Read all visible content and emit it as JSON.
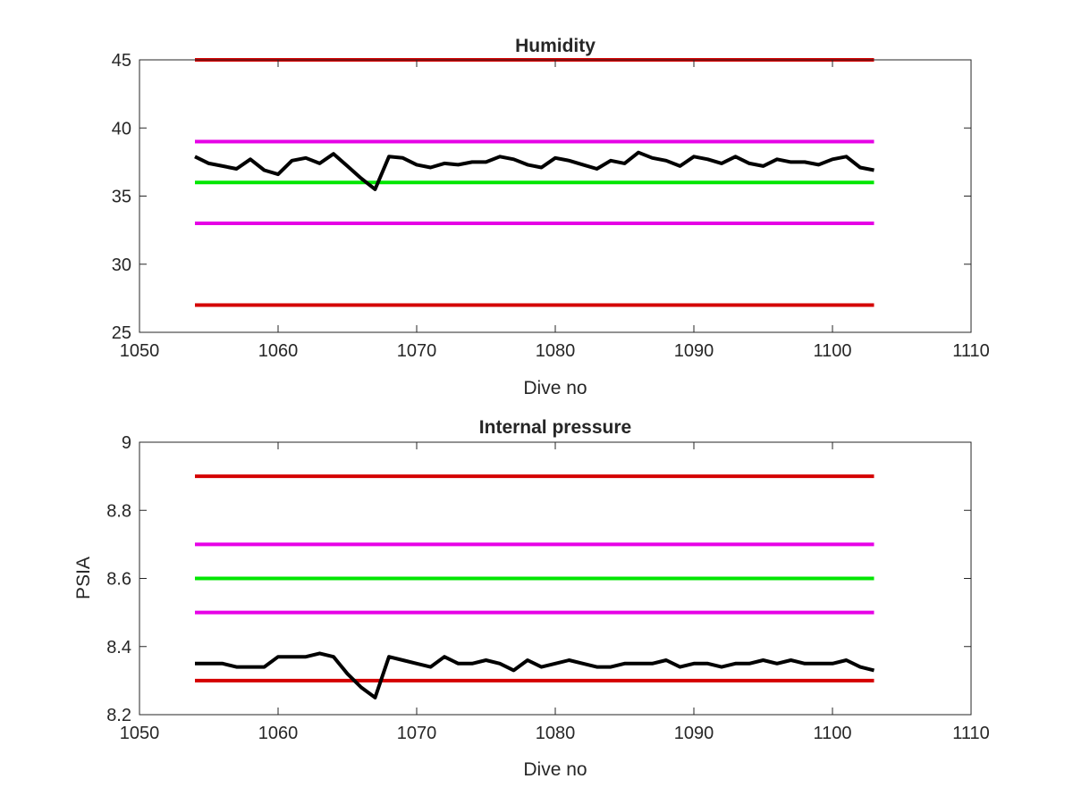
{
  "chart_data": [
    {
      "type": "line",
      "title": "Humidity",
      "xlabel": "Dive no",
      "ylabel": "",
      "xlim": [
        1050,
        1110
      ],
      "ylim": [
        25,
        45
      ],
      "xticks": [
        "1050",
        "1060",
        "1070",
        "1080",
        "1090",
        "1100",
        "1110"
      ],
      "yticks": [
        "25",
        "30",
        "35",
        "40",
        "45"
      ],
      "x": [
        1054,
        1055,
        1056,
        1057,
        1058,
        1059,
        1060,
        1061,
        1062,
        1063,
        1064,
        1065,
        1066,
        1067,
        1068,
        1069,
        1070,
        1071,
        1072,
        1073,
        1074,
        1075,
        1076,
        1077,
        1078,
        1079,
        1080,
        1081,
        1082,
        1083,
        1084,
        1085,
        1086,
        1087,
        1088,
        1089,
        1090,
        1091,
        1092,
        1093,
        1094,
        1095,
        1096,
        1097,
        1098,
        1099,
        1100,
        1101,
        1102,
        1103
      ],
      "grid": false,
      "series": [
        {
          "color": "#d40000",
          "values": [
            45,
            45,
            45,
            45,
            45,
            45,
            45,
            45,
            45,
            45,
            45,
            45,
            45,
            45,
            45,
            45,
            45,
            45,
            45,
            45,
            45,
            45,
            45,
            45,
            45,
            45,
            45,
            45,
            45,
            45,
            45,
            45,
            45,
            45,
            45,
            45,
            45,
            45,
            45,
            45,
            45,
            45,
            45,
            45,
            45,
            45,
            45,
            45,
            45,
            45
          ]
        },
        {
          "color": "#e600e6",
          "values": [
            39,
            39,
            39,
            39,
            39,
            39,
            39,
            39,
            39,
            39,
            39,
            39,
            39,
            39,
            39,
            39,
            39,
            39,
            39,
            39,
            39,
            39,
            39,
            39,
            39,
            39,
            39,
            39,
            39,
            39,
            39,
            39,
            39,
            39,
            39,
            39,
            39,
            39,
            39,
            39,
            39,
            39,
            39,
            39,
            39,
            39,
            39,
            39,
            39,
            39
          ]
        },
        {
          "color": "#00e600",
          "values": [
            36,
            36,
            36,
            36,
            36,
            36,
            36,
            36,
            36,
            36,
            36,
            36,
            36,
            36,
            36,
            36,
            36,
            36,
            36,
            36,
            36,
            36,
            36,
            36,
            36,
            36,
            36,
            36,
            36,
            36,
            36,
            36,
            36,
            36,
            36,
            36,
            36,
            36,
            36,
            36,
            36,
            36,
            36,
            36,
            36,
            36,
            36,
            36,
            36,
            36
          ]
        },
        {
          "color": "#e600e6",
          "values": [
            33,
            33,
            33,
            33,
            33,
            33,
            33,
            33,
            33,
            33,
            33,
            33,
            33,
            33,
            33,
            33,
            33,
            33,
            33,
            33,
            33,
            33,
            33,
            33,
            33,
            33,
            33,
            33,
            33,
            33,
            33,
            33,
            33,
            33,
            33,
            33,
            33,
            33,
            33,
            33,
            33,
            33,
            33,
            33,
            33,
            33,
            33,
            33,
            33,
            33
          ]
        },
        {
          "color": "#d40000",
          "values": [
            27,
            27,
            27,
            27,
            27,
            27,
            27,
            27,
            27,
            27,
            27,
            27,
            27,
            27,
            27,
            27,
            27,
            27,
            27,
            27,
            27,
            27,
            27,
            27,
            27,
            27,
            27,
            27,
            27,
            27,
            27,
            27,
            27,
            27,
            27,
            27,
            27,
            27,
            27,
            27,
            27,
            27,
            27,
            27,
            27,
            27,
            27,
            27,
            27,
            27
          ]
        },
        {
          "color": "#000000",
          "values": [
            37.9,
            37.4,
            37.2,
            37.0,
            37.7,
            36.9,
            36.6,
            37.6,
            37.8,
            37.4,
            38.1,
            37.2,
            36.3,
            35.5,
            37.9,
            37.8,
            37.3,
            37.1,
            37.4,
            37.3,
            37.5,
            37.5,
            37.9,
            37.7,
            37.3,
            37.1,
            37.8,
            37.6,
            37.3,
            37.0,
            37.6,
            37.4,
            38.2,
            37.8,
            37.6,
            37.2,
            37.9,
            37.7,
            37.4,
            37.9,
            37.4,
            37.2,
            37.7,
            37.5,
            37.5,
            37.3,
            37.7,
            37.9,
            37.1,
            36.9
          ]
        }
      ]
    },
    {
      "type": "line",
      "title": "Internal pressure",
      "xlabel": "Dive no",
      "ylabel": "PSIA",
      "xlim": [
        1050,
        1110
      ],
      "ylim": [
        8.2,
        9
      ],
      "xticks": [
        "1050",
        "1060",
        "1070",
        "1080",
        "1090",
        "1100",
        "1110"
      ],
      "yticks": [
        "8.2",
        "8.4",
        "8.6",
        "8.8",
        "9"
      ],
      "x": [
        1054,
        1055,
        1056,
        1057,
        1058,
        1059,
        1060,
        1061,
        1062,
        1063,
        1064,
        1065,
        1066,
        1067,
        1068,
        1069,
        1070,
        1071,
        1072,
        1073,
        1074,
        1075,
        1076,
        1077,
        1078,
        1079,
        1080,
        1081,
        1082,
        1083,
        1084,
        1085,
        1086,
        1087,
        1088,
        1089,
        1090,
        1091,
        1092,
        1093,
        1094,
        1095,
        1096,
        1097,
        1098,
        1099,
        1100,
        1101,
        1102,
        1103
      ],
      "grid": false,
      "series": [
        {
          "color": "#d40000",
          "values": [
            8.9,
            8.9,
            8.9,
            8.9,
            8.9,
            8.9,
            8.9,
            8.9,
            8.9,
            8.9,
            8.9,
            8.9,
            8.9,
            8.9,
            8.9,
            8.9,
            8.9,
            8.9,
            8.9,
            8.9,
            8.9,
            8.9,
            8.9,
            8.9,
            8.9,
            8.9,
            8.9,
            8.9,
            8.9,
            8.9,
            8.9,
            8.9,
            8.9,
            8.9,
            8.9,
            8.9,
            8.9,
            8.9,
            8.9,
            8.9,
            8.9,
            8.9,
            8.9,
            8.9,
            8.9,
            8.9,
            8.9,
            8.9,
            8.9,
            8.9
          ]
        },
        {
          "color": "#e600e6",
          "values": [
            8.7,
            8.7,
            8.7,
            8.7,
            8.7,
            8.7,
            8.7,
            8.7,
            8.7,
            8.7,
            8.7,
            8.7,
            8.7,
            8.7,
            8.7,
            8.7,
            8.7,
            8.7,
            8.7,
            8.7,
            8.7,
            8.7,
            8.7,
            8.7,
            8.7,
            8.7,
            8.7,
            8.7,
            8.7,
            8.7,
            8.7,
            8.7,
            8.7,
            8.7,
            8.7,
            8.7,
            8.7,
            8.7,
            8.7,
            8.7,
            8.7,
            8.7,
            8.7,
            8.7,
            8.7,
            8.7,
            8.7,
            8.7,
            8.7,
            8.7
          ]
        },
        {
          "color": "#00e600",
          "values": [
            8.6,
            8.6,
            8.6,
            8.6,
            8.6,
            8.6,
            8.6,
            8.6,
            8.6,
            8.6,
            8.6,
            8.6,
            8.6,
            8.6,
            8.6,
            8.6,
            8.6,
            8.6,
            8.6,
            8.6,
            8.6,
            8.6,
            8.6,
            8.6,
            8.6,
            8.6,
            8.6,
            8.6,
            8.6,
            8.6,
            8.6,
            8.6,
            8.6,
            8.6,
            8.6,
            8.6,
            8.6,
            8.6,
            8.6,
            8.6,
            8.6,
            8.6,
            8.6,
            8.6,
            8.6,
            8.6,
            8.6,
            8.6,
            8.6,
            8.6
          ]
        },
        {
          "color": "#e600e6",
          "values": [
            8.5,
            8.5,
            8.5,
            8.5,
            8.5,
            8.5,
            8.5,
            8.5,
            8.5,
            8.5,
            8.5,
            8.5,
            8.5,
            8.5,
            8.5,
            8.5,
            8.5,
            8.5,
            8.5,
            8.5,
            8.5,
            8.5,
            8.5,
            8.5,
            8.5,
            8.5,
            8.5,
            8.5,
            8.5,
            8.5,
            8.5,
            8.5,
            8.5,
            8.5,
            8.5,
            8.5,
            8.5,
            8.5,
            8.5,
            8.5,
            8.5,
            8.5,
            8.5,
            8.5,
            8.5,
            8.5,
            8.5,
            8.5,
            8.5,
            8.5
          ]
        },
        {
          "color": "#d40000",
          "values": [
            8.3,
            8.3,
            8.3,
            8.3,
            8.3,
            8.3,
            8.3,
            8.3,
            8.3,
            8.3,
            8.3,
            8.3,
            8.3,
            8.3,
            8.3,
            8.3,
            8.3,
            8.3,
            8.3,
            8.3,
            8.3,
            8.3,
            8.3,
            8.3,
            8.3,
            8.3,
            8.3,
            8.3,
            8.3,
            8.3,
            8.3,
            8.3,
            8.3,
            8.3,
            8.3,
            8.3,
            8.3,
            8.3,
            8.3,
            8.3,
            8.3,
            8.3,
            8.3,
            8.3,
            8.3,
            8.3,
            8.3,
            8.3,
            8.3,
            8.3
          ]
        },
        {
          "color": "#000000",
          "values": [
            8.35,
            8.35,
            8.35,
            8.34,
            8.34,
            8.34,
            8.37,
            8.37,
            8.37,
            8.38,
            8.37,
            8.32,
            8.28,
            8.25,
            8.37,
            8.36,
            8.35,
            8.34,
            8.37,
            8.35,
            8.35,
            8.36,
            8.35,
            8.33,
            8.36,
            8.34,
            8.35,
            8.36,
            8.35,
            8.34,
            8.34,
            8.35,
            8.35,
            8.35,
            8.36,
            8.34,
            8.35,
            8.35,
            8.34,
            8.35,
            8.35,
            8.36,
            8.35,
            8.36,
            8.35,
            8.35,
            8.35,
            8.36,
            8.34,
            8.33
          ]
        }
      ]
    }
  ]
}
